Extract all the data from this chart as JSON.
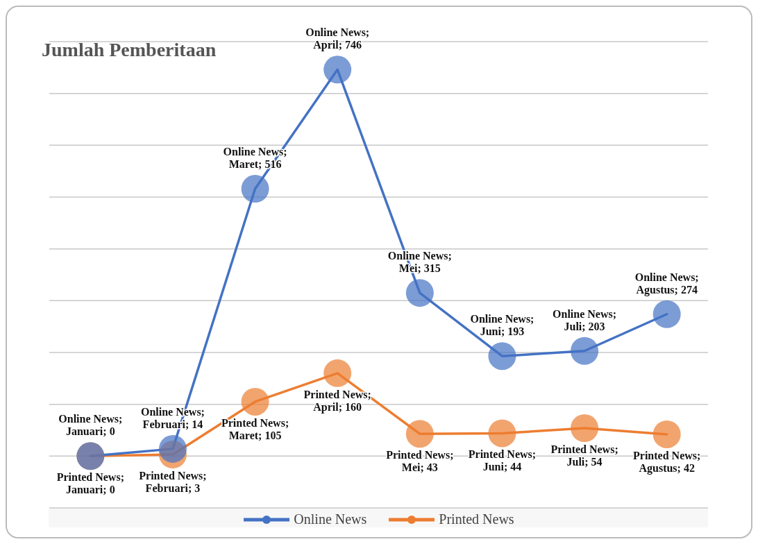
{
  "chart_data": {
    "type": "line",
    "title": "Jumlah Pemberitaan",
    "categories": [
      null,
      null,
      null,
      null,
      null,
      null,
      null,
      null
    ],
    "series": [
      {
        "name": "Online News",
        "color": "#4472c4",
        "values": [
          0,
          14,
          516,
          746,
          315,
          193,
          203,
          274
        ],
        "value_labels": [
          "Online News; Januari; 0",
          "Online News; Februari; 14",
          "Online News; Maret; 516",
          "Online News; April; 746",
          "Online News; Mei; 315",
          "Online News; Juni; 193",
          "Online News; Juli; 203",
          "Online News; Agustus; 274"
        ]
      },
      {
        "name": "Printed News",
        "color": "#ed7d31",
        "values": [
          0,
          3,
          105,
          160,
          43,
          44,
          54,
          42
        ],
        "value_labels": [
          "Printed News; Januari; 0",
          "Printed News; Februari; 3",
          "Printed News; Maret; 105",
          "Printed News; April; 160",
          "Printed News; Mei; 43",
          "Printed News; Juni; 44",
          "Printed News; Juli; 54",
          "Printed News; Agustus; 42"
        ]
      }
    ],
    "ylim": [
      -100,
      800
    ],
    "yticks": [
      {
        "value": -100,
        "label": null
      },
      {
        "value": 0,
        "label": null
      },
      {
        "value": 100,
        "label": null
      },
      {
        "value": 200,
        "label": null
      },
      {
        "value": 300,
        "label": null
      },
      {
        "value": 400,
        "label": null
      },
      {
        "value": 500,
        "label": null
      },
      {
        "value": 600,
        "label": null
      },
      {
        "value": 700,
        "label": null
      },
      {
        "value": 800,
        "label": null
      }
    ],
    "grid": "y",
    "legend": "bottom",
    "tick_labels": false,
    "marker": "circle",
    "line_style": "solid"
  }
}
